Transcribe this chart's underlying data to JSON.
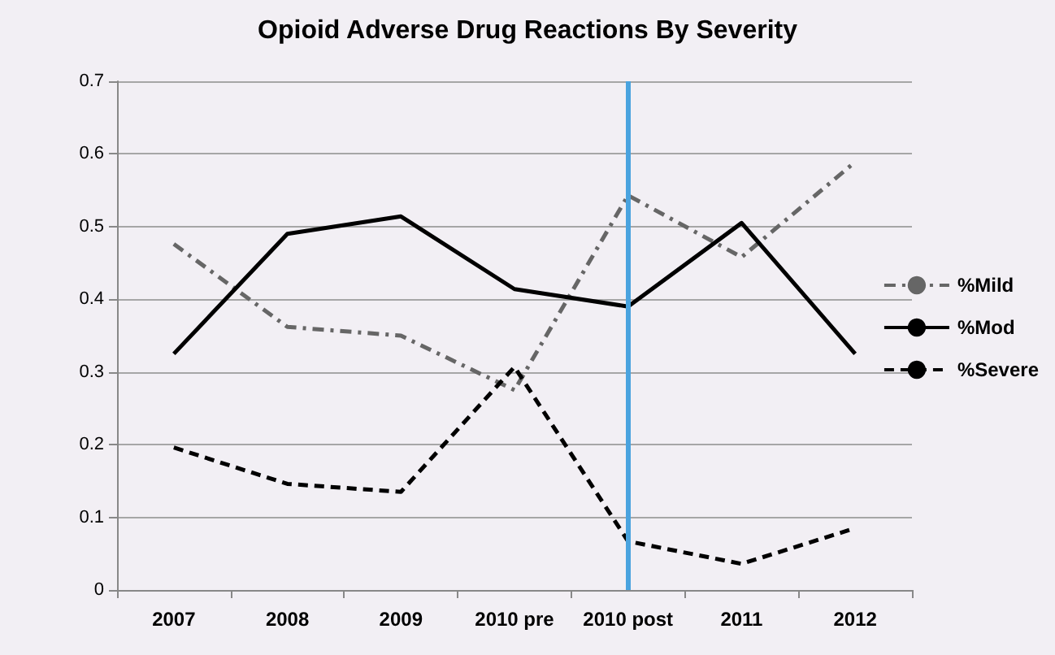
{
  "chart_data": {
    "type": "line",
    "title": "Opioid Adverse Drug Reactions By Severity",
    "categories": [
      "2007",
      "2008",
      "2009",
      "2010 pre",
      "2010 post",
      "2011",
      "2012"
    ],
    "series": [
      {
        "name": "%Mild",
        "color": "#666666",
        "line_style": "dashdot",
        "values": [
          0.476,
          0.362,
          0.35,
          0.275,
          0.543,
          0.458,
          0.589
        ]
      },
      {
        "name": "%Mod",
        "color": "#000000",
        "line_style": "solid",
        "values": [
          0.325,
          0.49,
          0.514,
          0.414,
          0.39,
          0.505,
          0.325
        ]
      },
      {
        "name": "%Severe",
        "color": "#000000",
        "line_style": "dashed",
        "values": [
          0.196,
          0.146,
          0.135,
          0.307,
          0.067,
          0.036,
          0.085
        ]
      }
    ],
    "ylim": [
      0,
      0.7
    ],
    "yticks": [
      0,
      0.1,
      0.2,
      0.3,
      0.4,
      0.5,
      0.6,
      0.7
    ],
    "ref_lines": [
      {
        "axis": "x",
        "value": "2010 post",
        "color": "#4aa3df"
      }
    ],
    "grid": "y",
    "legend": "right",
    "marker": "none"
  }
}
